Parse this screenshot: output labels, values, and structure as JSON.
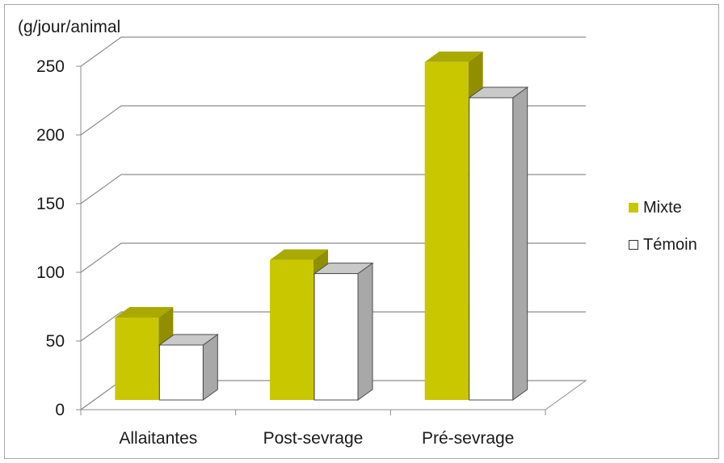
{
  "chart_data": {
    "type": "bar",
    "title": "",
    "ylabel": "(g/jour/animal",
    "xlabel": "",
    "categories": [
      "Allaitantes",
      "Post-sevrage",
      "Pré-sevrage"
    ],
    "series": [
      {
        "name": "Mixte",
        "values": [
          60,
          102,
          246
        ],
        "color": "#c9c800"
      },
      {
        "name": "Témoin",
        "values": [
          40,
          92,
          220
        ],
        "color": "#ffffff"
      }
    ],
    "ylim": [
      0,
      250
    ],
    "yticks": [
      0,
      50,
      100,
      150,
      200,
      250
    ],
    "grid": true,
    "legend": "right"
  }
}
